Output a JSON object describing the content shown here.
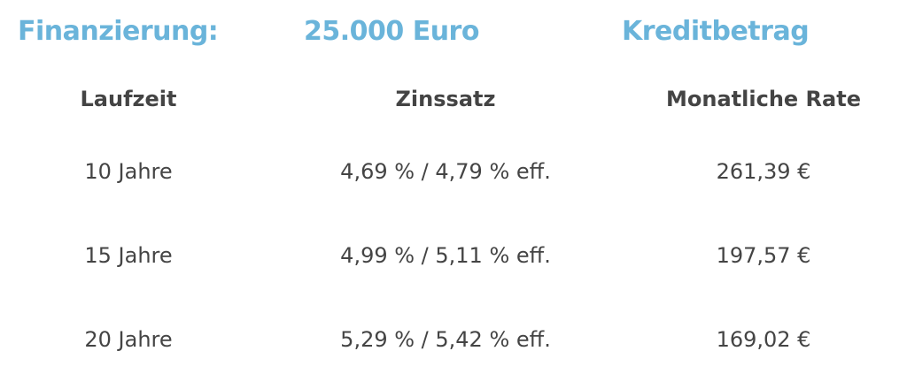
{
  "heading": {
    "label": "Finanzierung:",
    "amount": "25.000 Euro",
    "type": "Kreditbetrag",
    "color": "#6ab4da"
  },
  "table": {
    "columns": [
      "Laufzeit",
      "Zinssatz",
      "Monatliche Rate"
    ],
    "rows": [
      [
        "10 Jahre",
        "4,69 % / 4,79 % eff.",
        "261,39 €"
      ],
      [
        "15 Jahre",
        "4,99 % / 5,11 % eff.",
        "197,57 €"
      ],
      [
        "20 Jahre",
        "5,29 % / 5,42 % eff.",
        "169,02 €"
      ]
    ]
  }
}
